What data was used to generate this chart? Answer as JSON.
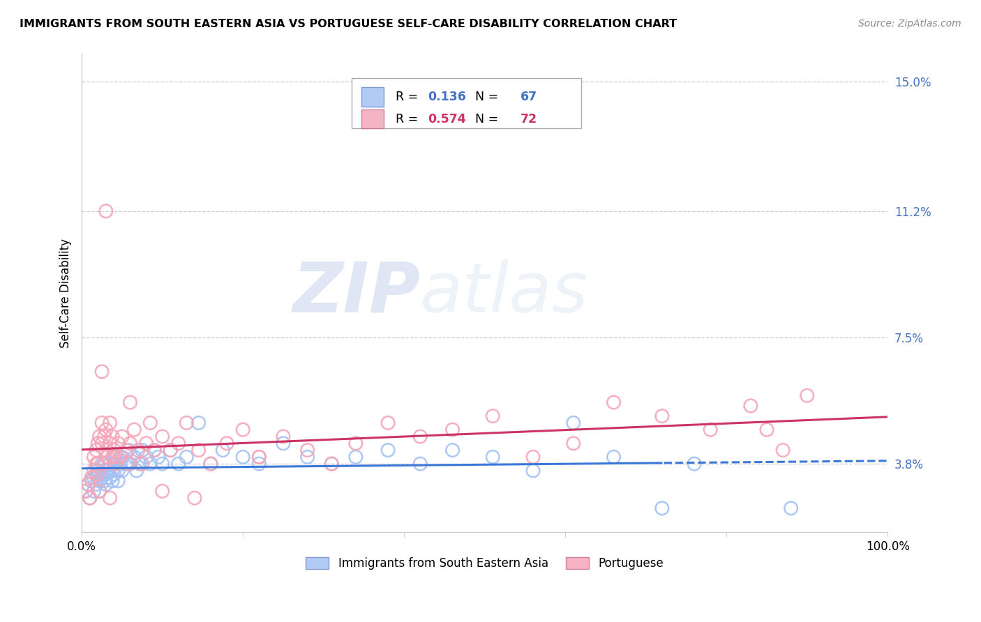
{
  "title": "IMMIGRANTS FROM SOUTH EASTERN ASIA VS PORTUGUESE SELF-CARE DISABILITY CORRELATION CHART",
  "source": "Source: ZipAtlas.com",
  "ylabel": "Self-Care Disability",
  "xlim": [
    0,
    1.0
  ],
  "ylim": [
    0.018,
    0.158
  ],
  "yticks": [
    0.038,
    0.075,
    0.112,
    0.15
  ],
  "ytick_labels": [
    "3.8%",
    "7.5%",
    "11.2%",
    "15.0%"
  ],
  "xtick_labels": [
    "0.0%",
    "100.0%"
  ],
  "xticks": [
    0.0,
    1.0
  ],
  "minor_xticks": [
    0.2,
    0.4,
    0.6,
    0.8
  ],
  "color_blue": "#a4c2f4",
  "color_pink": "#f4a7b9",
  "line_blue": "#3c78d8",
  "line_pink": "#cc3366",
  "R_blue": "0.136",
  "N_blue": "67",
  "R_pink": "0.574",
  "N_pink": "72",
  "watermark_zip": "ZIP",
  "watermark_atlas": "atlas",
  "legend_labels": [
    "Immigrants from South Eastern Asia",
    "Portuguese"
  ],
  "blue_x": [
    0.005,
    0.008,
    0.01,
    0.012,
    0.015,
    0.015,
    0.018,
    0.018,
    0.02,
    0.02,
    0.022,
    0.022,
    0.025,
    0.025,
    0.025,
    0.028,
    0.028,
    0.03,
    0.03,
    0.03,
    0.032,
    0.035,
    0.035,
    0.038,
    0.038,
    0.04,
    0.04,
    0.042,
    0.045,
    0.045,
    0.048,
    0.05,
    0.05,
    0.055,
    0.058,
    0.06,
    0.065,
    0.068,
    0.072,
    0.075,
    0.08,
    0.085,
    0.09,
    0.095,
    0.1,
    0.11,
    0.12,
    0.13,
    0.145,
    0.16,
    0.175,
    0.2,
    0.22,
    0.25,
    0.28,
    0.31,
    0.34,
    0.38,
    0.42,
    0.46,
    0.51,
    0.56,
    0.61,
    0.66,
    0.72,
    0.76,
    0.88
  ],
  "blue_y": [
    0.03,
    0.032,
    0.028,
    0.033,
    0.034,
    0.03,
    0.035,
    0.032,
    0.034,
    0.036,
    0.033,
    0.03,
    0.035,
    0.038,
    0.034,
    0.036,
    0.033,
    0.038,
    0.035,
    0.032,
    0.036,
    0.034,
    0.038,
    0.036,
    0.033,
    0.038,
    0.035,
    0.04,
    0.036,
    0.033,
    0.038,
    0.04,
    0.036,
    0.038,
    0.042,
    0.038,
    0.04,
    0.036,
    0.038,
    0.042,
    0.04,
    0.038,
    0.042,
    0.04,
    0.038,
    0.042,
    0.038,
    0.04,
    0.05,
    0.038,
    0.042,
    0.04,
    0.038,
    0.044,
    0.04,
    0.038,
    0.04,
    0.042,
    0.038,
    0.042,
    0.04,
    0.036,
    0.05,
    0.04,
    0.025,
    0.038,
    0.025
  ],
  "pink_x": [
    0.005,
    0.008,
    0.01,
    0.012,
    0.015,
    0.015,
    0.018,
    0.018,
    0.02,
    0.02,
    0.022,
    0.022,
    0.025,
    0.025,
    0.028,
    0.028,
    0.03,
    0.03,
    0.032,
    0.035,
    0.035,
    0.038,
    0.038,
    0.04,
    0.042,
    0.045,
    0.048,
    0.05,
    0.055,
    0.058,
    0.06,
    0.065,
    0.07,
    0.075,
    0.08,
    0.085,
    0.09,
    0.1,
    0.11,
    0.12,
    0.13,
    0.145,
    0.16,
    0.18,
    0.2,
    0.22,
    0.25,
    0.28,
    0.31,
    0.34,
    0.38,
    0.42,
    0.46,
    0.51,
    0.56,
    0.61,
    0.66,
    0.72,
    0.78,
    0.83,
    0.85,
    0.87,
    0.9,
    0.22,
    0.14,
    0.1,
    0.06,
    0.04,
    0.035,
    0.03,
    0.025,
    0.02
  ],
  "pink_y": [
    0.03,
    0.032,
    0.028,
    0.034,
    0.04,
    0.036,
    0.042,
    0.038,
    0.044,
    0.035,
    0.03,
    0.046,
    0.044,
    0.05,
    0.046,
    0.038,
    0.048,
    0.042,
    0.04,
    0.05,
    0.044,
    0.046,
    0.04,
    0.042,
    0.038,
    0.044,
    0.04,
    0.046,
    0.042,
    0.038,
    0.044,
    0.048,
    0.042,
    0.038,
    0.044,
    0.05,
    0.042,
    0.046,
    0.042,
    0.044,
    0.05,
    0.042,
    0.038,
    0.044,
    0.048,
    0.04,
    0.046,
    0.042,
    0.038,
    0.044,
    0.05,
    0.046,
    0.048,
    0.052,
    0.04,
    0.044,
    0.056,
    0.052,
    0.048,
    0.055,
    0.048,
    0.042,
    0.058,
    0.04,
    0.028,
    0.03,
    0.056,
    0.04,
    0.028,
    0.112,
    0.065,
    0.038
  ]
}
